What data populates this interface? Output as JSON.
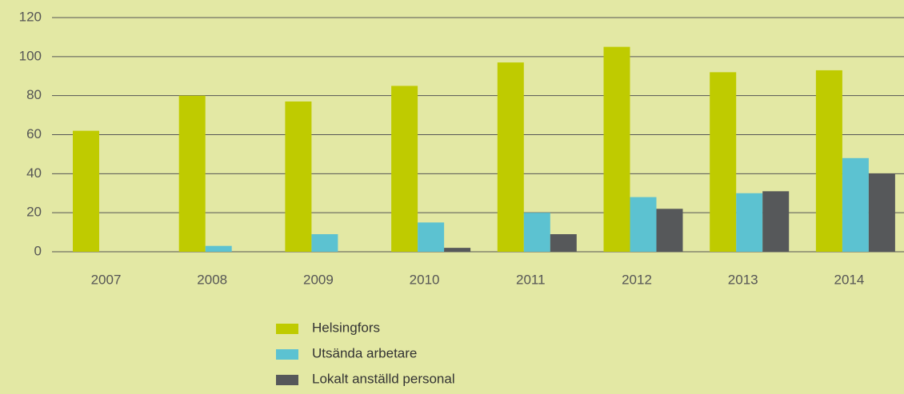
{
  "chart_data": {
    "type": "bar",
    "categories": [
      "2007",
      "2008",
      "2009",
      "2010",
      "2011",
      "2012",
      "2013",
      "2014"
    ],
    "series": [
      {
        "name": "Helsingfors",
        "color": "#bfcb00",
        "values": [
          62,
          80,
          77,
          85,
          97,
          105,
          92,
          93
        ]
      },
      {
        "name": "Utsända arbetare",
        "color": "#5cc2d1",
        "values": [
          0,
          3,
          9,
          15,
          20,
          28,
          30,
          48
        ]
      },
      {
        "name": "Lokalt anställd personal",
        "color": "#56585a",
        "values": [
          0,
          0,
          0,
          2,
          9,
          22,
          31,
          40
        ]
      }
    ],
    "ylim": [
      0,
      120
    ],
    "yticks": [
      0,
      20,
      40,
      60,
      80,
      100,
      120
    ],
    "grid": true,
    "legend": "bottom"
  }
}
